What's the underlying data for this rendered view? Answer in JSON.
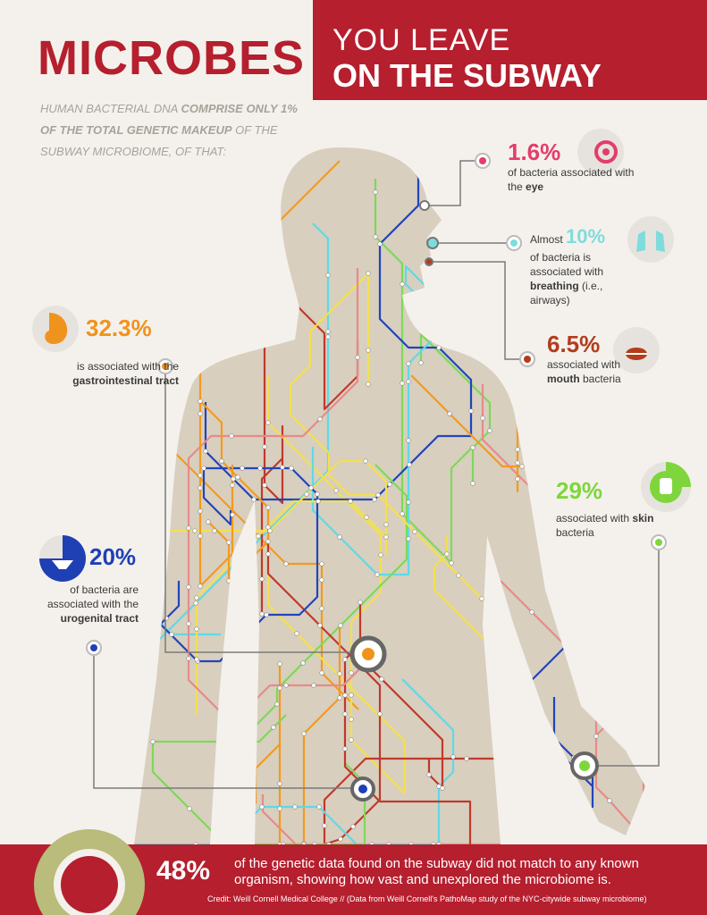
{
  "header": {
    "title": "MICROBES",
    "subtitle_line1": "YOU LEAVE",
    "subtitle_line2": "ON THE SUBWAY"
  },
  "intro": [
    "HUMAN BACTERIAL DNA ",
    "COMPRISE ONLY 1% OF THE TOTAL GENETIC MAKEUP",
    " OF THE SUBWAY MICROBIOME, OF THAT:"
  ],
  "callouts": {
    "eye": {
      "percent": "1.6%",
      "text": [
        "of bacteria associated with the ",
        "eye"
      ]
    },
    "breathing": {
      "lead": "Almost ",
      "percent": "10%",
      "text": [
        "of bacteria is associated with ",
        "breathing",
        " (i.e., airways)"
      ]
    },
    "mouth": {
      "percent": "6.5%",
      "text": [
        "associated with ",
        "mouth",
        " bacteria"
      ]
    },
    "gastrointestinal": {
      "percent": "32.3%",
      "text": [
        "is associated with the ",
        "gastrointestinal tract"
      ]
    },
    "skin": {
      "percent": "29%",
      "text": [
        "associated with ",
        "skin",
        " bacteria"
      ]
    },
    "urogenital": {
      "percent": "20%",
      "text": [
        "of bacteria are associated with the ",
        "urogenital tract"
      ]
    }
  },
  "footer": {
    "percent": "48%",
    "text": "of the genetic data found on the subway did not match to any known organism, showing how vast and unexplored the microbiome is.",
    "credit": "Credit: Weill Cornell Medical College // (Data from Weill Cornell's PathoMap study of the NYC-citywide subway microbiome)"
  }
}
